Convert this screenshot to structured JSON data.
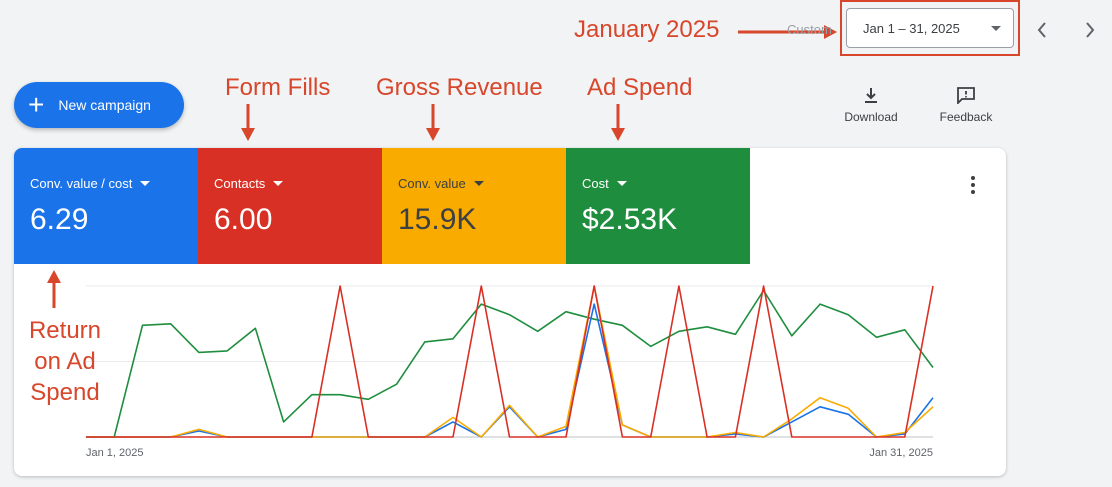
{
  "header": {
    "custom_label": "Custom",
    "date_range": "Jan 1 – 31, 2025"
  },
  "toolbar": {
    "new_campaign_label": "New campaign",
    "download_label": "Download",
    "feedback_label": "Feedback"
  },
  "annotations": {
    "january": "January 2025",
    "form_fills": "Form Fills",
    "gross_revenue": "Gross Revenue",
    "ad_spend": "Ad Spend",
    "roas": "Return on Ad Spend"
  },
  "metrics": [
    {
      "label": "Conv. value / cost",
      "value": "6.29",
      "color": "#1a73e8",
      "text_color": "#ffffff"
    },
    {
      "label": "Contacts",
      "value": "6.00",
      "color": "#d93025",
      "text_color": "#ffffff"
    },
    {
      "label": "Conv. value",
      "value": "15.9K",
      "color": "#f9ab00",
      "text_color": "#3c4043"
    },
    {
      "label": "Cost",
      "value": "$2.53K",
      "color": "#1e8e3e",
      "text_color": "#ffffff"
    }
  ],
  "chart_data": {
    "type": "line",
    "x_start_label": "Jan 1, 2025",
    "x_end_label": "Jan 31, 2025",
    "x": [
      1,
      2,
      3,
      4,
      5,
      6,
      7,
      8,
      9,
      10,
      11,
      12,
      13,
      14,
      15,
      16,
      17,
      18,
      19,
      20,
      21,
      22,
      23,
      24,
      25,
      26,
      27,
      28,
      29,
      30,
      31
    ],
    "ylim": [
      0,
      1
    ],
    "series": [
      {
        "name": "Conv. value / cost",
        "color": "#1a73e8",
        "values": [
          0,
          0,
          0,
          0,
          0.04,
          0,
          0,
          0,
          0,
          0,
          0,
          0,
          0,
          0.1,
          0,
          0.2,
          0,
          0.05,
          0.88,
          0.08,
          0,
          0,
          0,
          0.02,
          0,
          0.1,
          0.2,
          0.15,
          0,
          0.02,
          0.26
        ]
      },
      {
        "name": "Contacts",
        "color": "#d93025",
        "values": [
          0,
          0,
          0,
          0,
          0,
          0,
          0,
          0,
          0,
          1,
          0,
          0,
          0,
          0,
          1,
          0,
          0,
          0,
          1,
          0,
          0,
          1,
          0,
          0,
          1,
          0,
          0,
          0,
          0,
          0,
          1
        ]
      },
      {
        "name": "Conv. value",
        "color": "#f9ab00",
        "values": [
          0,
          0,
          0,
          0,
          0.05,
          0,
          0,
          0,
          0,
          0,
          0,
          0,
          0,
          0.13,
          0,
          0.21,
          0,
          0.07,
          1.0,
          0.08,
          0,
          0,
          0,
          0.03,
          0,
          0.12,
          0.26,
          0.19,
          0,
          0.03,
          0.2
        ]
      },
      {
        "name": "Cost",
        "color": "#1e8e3e",
        "values": [
          0,
          0,
          0.74,
          0.75,
          0.56,
          0.57,
          0.72,
          0.1,
          0.28,
          0.28,
          0.25,
          0.35,
          0.63,
          0.65,
          0.88,
          0.81,
          0.7,
          0.83,
          0.78,
          0.74,
          0.6,
          0.7,
          0.73,
          0.68,
          0.97,
          0.67,
          0.88,
          0.81,
          0.66,
          0.71,
          0.46
        ]
      }
    ]
  }
}
